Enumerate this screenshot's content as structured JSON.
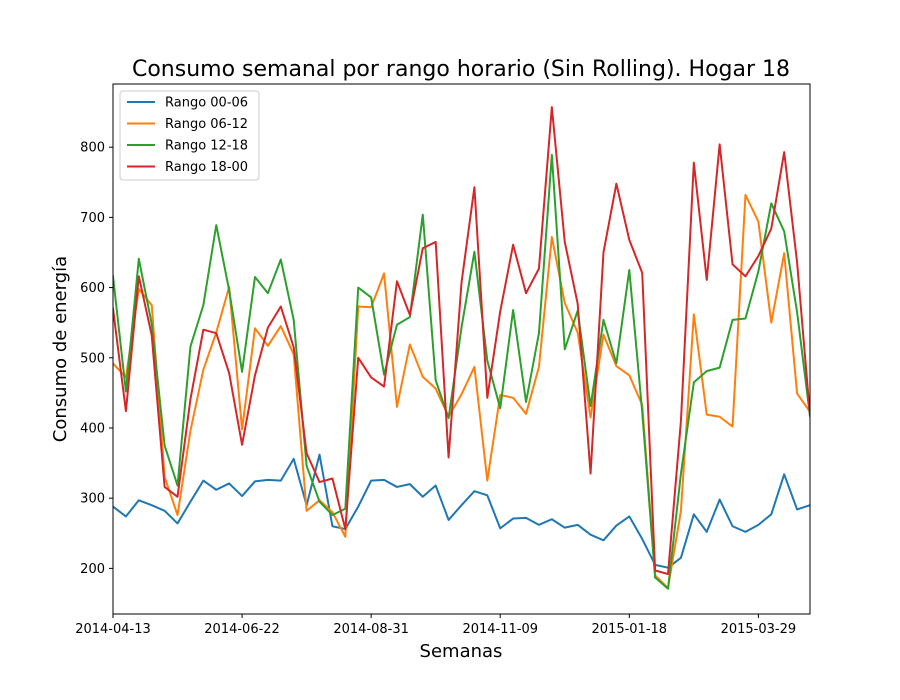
{
  "chart_data": {
    "type": "line",
    "title": "Consumo semanal por rango horario (Sin Rolling). Hogar 18",
    "xlabel": "Semanas",
    "ylabel": "Consumo de energía",
    "x_tick_labels": [
      "2014-04-13",
      "2014-06-22",
      "2014-08-31",
      "2014-11-09",
      "2015-01-18",
      "2015-03-29"
    ],
    "y_ticks": [
      200,
      300,
      400,
      500,
      600,
      700,
      800
    ],
    "x_range": [
      0,
      54
    ],
    "y_range": [
      135,
      890
    ],
    "grid": false,
    "legend_position": "upper-left",
    "series": [
      {
        "name": "Rango 00-06",
        "color": "#1f77b4",
        "values": [
          288,
          274,
          297,
          290,
          282,
          264,
          295,
          325,
          312,
          321,
          303,
          324,
          326,
          325,
          356,
          290,
          362,
          260,
          256,
          288,
          325,
          326,
          316,
          320,
          302,
          318,
          269,
          290,
          310,
          304,
          257,
          271,
          272,
          262,
          270,
          258,
          262,
          248,
          240,
          261,
          274,
          242,
          205,
          201,
          215,
          277,
          252,
          298,
          260,
          252,
          262,
          277,
          334,
          284,
          290
        ]
      },
      {
        "name": "Rango 06-12",
        "color": "#ff7f0e",
        "values": [
          492,
          472,
          598,
          575,
          330,
          276,
          396,
          483,
          536,
          601,
          398,
          542,
          517,
          545,
          505,
          282,
          297,
          280,
          245,
          573,
          572,
          620,
          430,
          519,
          473,
          456,
          416,
          448,
          487,
          325,
          447,
          443,
          420,
          487,
          672,
          578,
          536,
          415,
          533,
          488,
          475,
          433,
          190,
          172,
          282,
          562,
          419,
          416,
          402,
          732,
          694,
          550,
          649,
          449,
          423
        ]
      },
      {
        "name": "Rango 12-18",
        "color": "#2ca02c",
        "values": [
          616,
          452,
          641,
          548,
          375,
          318,
          516,
          575,
          689,
          596,
          480,
          615,
          592,
          640,
          554,
          346,
          295,
          276,
          285,
          600,
          586,
          476,
          547,
          558,
          704,
          468,
          414,
          543,
          651,
          496,
          428,
          568,
          437,
          535,
          789,
          512,
          567,
          431,
          554,
          492,
          625,
          423,
          187,
          171,
          335,
          465,
          481,
          486,
          554,
          556,
          623,
          720,
          680,
          565,
          417
        ]
      },
      {
        "name": "Rango 18-00",
        "color": "#d62728",
        "values": [
          570,
          424,
          616,
          532,
          316,
          302,
          441,
          540,
          535,
          478,
          376,
          475,
          543,
          573,
          515,
          364,
          323,
          328,
          256,
          500,
          472,
          459,
          609,
          561,
          656,
          665,
          358,
          607,
          743,
          443,
          566,
          661,
          592,
          627,
          857,
          665,
          577,
          335,
          650,
          748,
          668,
          621,
          197,
          192,
          410,
          778,
          611,
          804,
          633,
          616,
          645,
          684,
          793,
          636,
          418
        ]
      }
    ]
  }
}
